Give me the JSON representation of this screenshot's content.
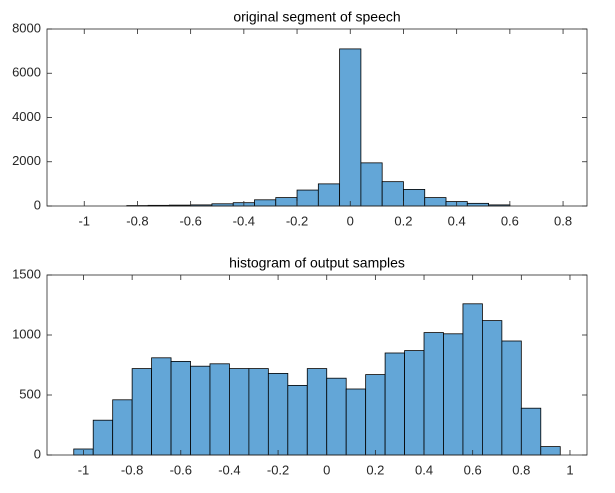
{
  "chart_data": [
    {
      "type": "histogram",
      "title": "original segment of speech",
      "color": "#63a6d7",
      "bins": [
        -0.84,
        -0.76,
        -0.68,
        -0.6,
        -0.52,
        -0.44,
        -0.36,
        -0.28,
        -0.2,
        -0.12,
        -0.04,
        0.04,
        0.12,
        0.2,
        0.28,
        0.36,
        0.44,
        0.52,
        0.6
      ],
      "values": [
        20,
        30,
        40,
        50,
        100,
        150,
        280,
        380,
        720,
        1000,
        7100,
        1950,
        1100,
        750,
        380,
        200,
        120,
        50
      ],
      "xlim": [
        -1.14,
        0.89
      ],
      "xticks": [
        -1,
        -0.8,
        -0.6,
        -0.4,
        -0.2,
        0,
        0.2,
        0.4,
        0.6,
        0.8
      ],
      "ylim": [
        0,
        8000
      ],
      "yticks": [
        0,
        2000,
        4000,
        6000,
        8000
      ],
      "grid": false
    },
    {
      "type": "histogram",
      "title": "histogram of output samples",
      "color": "#63a6d7",
      "bins": [
        -1.04,
        -0.96,
        -0.88,
        -0.8,
        -0.72,
        -0.64,
        -0.56,
        -0.48,
        -0.4,
        -0.32,
        -0.24,
        -0.16,
        -0.08,
        0,
        0.08,
        0.16,
        0.24,
        0.32,
        0.4,
        0.48,
        0.56,
        0.64,
        0.72,
        0.8,
        0.88,
        0.96
      ],
      "values": [
        50,
        290,
        460,
        720,
        810,
        780,
        740,
        760,
        720,
        720,
        680,
        580,
        720,
        640,
        550,
        670,
        850,
        870,
        1020,
        1010,
        1260,
        1120,
        950,
        390,
        70
      ],
      "xlim": [
        -1.15,
        1.07
      ],
      "xticks": [
        -1,
        -0.8,
        -0.6,
        -0.4,
        -0.2,
        0,
        0.2,
        0.4,
        0.6,
        0.8,
        1
      ],
      "ylim": [
        0,
        1500
      ],
      "yticks": [
        0,
        500,
        1000,
        1500
      ],
      "grid": false
    }
  ]
}
